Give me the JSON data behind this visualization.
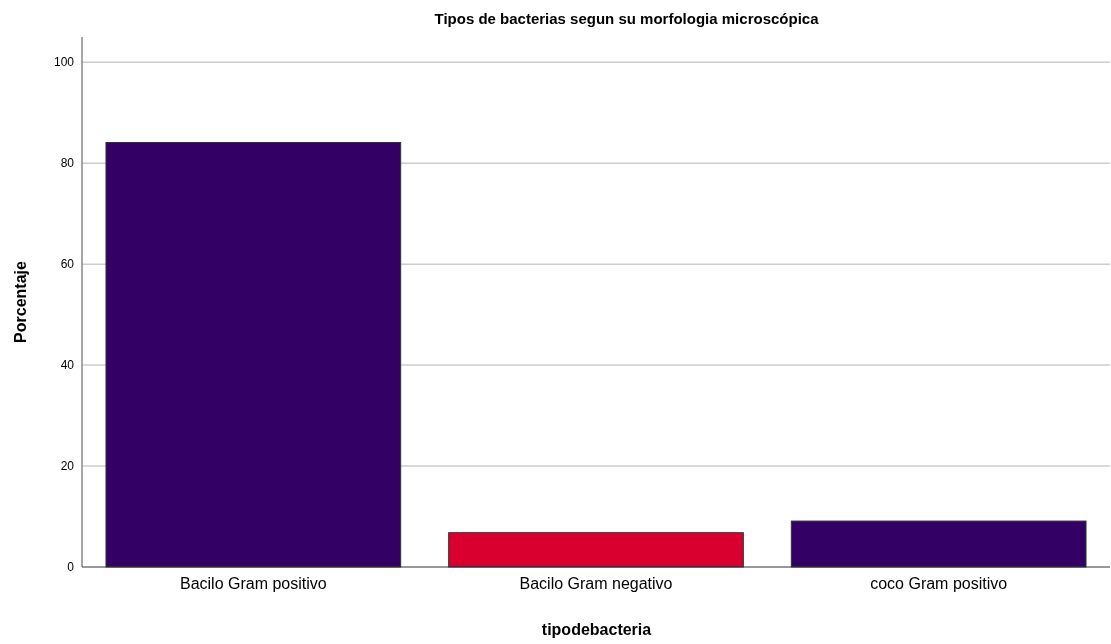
{
  "chart_data": {
    "type": "bar",
    "title": "Tipos de bacterias segun su morfologia microscópica",
    "xlabel": "tipodebacteria",
    "ylabel": "Porcentaje",
    "categories": [
      "Bacilo Gram positivo",
      "Bacilo Gram negativo",
      "coco Gram positivo"
    ],
    "values": [
      84.1,
      6.8,
      9.1
    ],
    "colors": [
      "#330066",
      "#d9002f",
      "#330066"
    ],
    "ylim": [
      0,
      105
    ],
    "yticks": [
      0,
      20,
      40,
      60,
      80,
      100
    ],
    "grid": "y"
  }
}
